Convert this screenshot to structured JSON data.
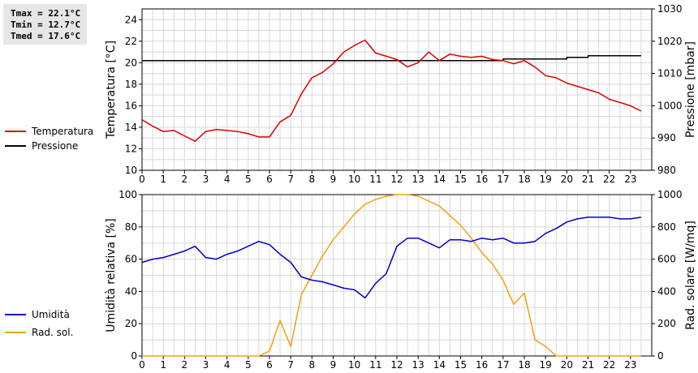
{
  "stats": {
    "tmax": "Tmax = 22.1°C",
    "tmin": "Tmin = 12.7°C",
    "tmed": "Tmed = 17.6°C"
  },
  "legend": {
    "temperatura": "Temperatura",
    "pressione": "Pressione",
    "umidita": "Umidità",
    "rad_sol": "Rad. sol."
  },
  "colors": {
    "temperatura": "#dd0000",
    "pressione": "#000000",
    "umidita": "#0000cc",
    "rad_sol": "#f0a010",
    "grid": "#d8d8d8"
  },
  "chart_data": [
    {
      "type": "line",
      "ylabel": "Temperatura [°C]",
      "y2label": "Pressione [mbar]",
      "xlim": [
        0,
        24
      ],
      "ylim": [
        10,
        25
      ],
      "y2lim": [
        980,
        1030
      ],
      "xticks": [
        "0",
        "1",
        "2",
        "3",
        "4",
        "5",
        "6",
        "7",
        "8",
        "9",
        "10",
        "11",
        "12",
        "13",
        "14",
        "15",
        "16",
        "17",
        "18",
        "19",
        "20",
        "21",
        "22",
        "23"
      ],
      "yticks": [
        "10",
        "12",
        "14",
        "16",
        "18",
        "20",
        "22",
        "24"
      ],
      "y2ticks": [
        "980",
        "990",
        "1000",
        "1010",
        "1020",
        "1030"
      ],
      "grid": true,
      "series": [
        {
          "name": "Temperatura",
          "axis": "left",
          "x": [
            0,
            0.5,
            1,
            1.5,
            2,
            2.5,
            3,
            3.5,
            4,
            4.5,
            5,
            5.5,
            6,
            6.5,
            7,
            7.5,
            8,
            8.5,
            9,
            9.5,
            10,
            10.5,
            11,
            11.5,
            12,
            12.5,
            13,
            13.5,
            14,
            14.5,
            15,
            15.5,
            16,
            16.5,
            17,
            17.5,
            18,
            18.5,
            19,
            19.5,
            20,
            20.5,
            21,
            21.5,
            22,
            22.5,
            23,
            23.5
          ],
          "values": [
            14.7,
            14.1,
            13.6,
            13.7,
            13.2,
            12.7,
            13.6,
            13.8,
            13.7,
            13.6,
            13.4,
            13.1,
            13.1,
            14.5,
            15.1,
            17.1,
            18.6,
            19.1,
            19.9,
            21.0,
            21.6,
            22.1,
            20.9,
            20.6,
            20.3,
            19.6,
            20.0,
            21.0,
            20.2,
            20.8,
            20.6,
            20.5,
            20.6,
            20.3,
            20.2,
            19.9,
            20.2,
            19.6,
            18.8,
            18.6,
            18.1,
            17.8,
            17.5,
            17.2,
            16.6,
            16.3,
            16.0,
            15.5
          ]
        },
        {
          "name": "Pressione",
          "axis": "right",
          "x": [
            0,
            16.5,
            17,
            19.5,
            20,
            20.5,
            21,
            23.5
          ],
          "values": [
            1014,
            1014,
            1014.5,
            1014.5,
            1015,
            1015,
            1015.5,
            1015.5
          ]
        }
      ]
    },
    {
      "type": "line",
      "ylabel": "Umidità relativa [%]",
      "y2label": "Rad. solare [W/mq]",
      "xlim": [
        0,
        24
      ],
      "ylim": [
        0,
        100
      ],
      "y2lim": [
        0,
        1000
      ],
      "xticks": [
        "0",
        "1",
        "2",
        "3",
        "4",
        "5",
        "6",
        "7",
        "8",
        "9",
        "10",
        "11",
        "12",
        "13",
        "14",
        "15",
        "16",
        "17",
        "18",
        "19",
        "20",
        "21",
        "22",
        "23"
      ],
      "yticks": [
        "0",
        "20",
        "40",
        "60",
        "80",
        "100"
      ],
      "y2ticks": [
        "0",
        "200",
        "400",
        "600",
        "800",
        "1000"
      ],
      "grid": true,
      "series": [
        {
          "name": "Umidità",
          "axis": "left",
          "x": [
            0,
            0.5,
            1,
            1.5,
            2,
            2.5,
            3,
            3.5,
            4,
            4.5,
            5,
            5.5,
            6,
            6.5,
            7,
            7.5,
            8,
            8.5,
            9,
            9.5,
            10,
            10.5,
            11,
            11.5,
            12,
            12.5,
            13,
            13.5,
            14,
            14.5,
            15,
            15.5,
            16,
            16.5,
            17,
            17.5,
            18,
            18.5,
            19,
            19.5,
            20,
            20.5,
            21,
            21.5,
            22,
            22.5,
            23,
            23.5
          ],
          "values": [
            58,
            60,
            61,
            63,
            65,
            68,
            61,
            60,
            63,
            65,
            68,
            71,
            69,
            63,
            58,
            49,
            47,
            46,
            44,
            42,
            41,
            36,
            45,
            51,
            68,
            73,
            73,
            70,
            67,
            72,
            72,
            71,
            73,
            72,
            73,
            70,
            70,
            71,
            76,
            79,
            83,
            85,
            86,
            86,
            86,
            85,
            85,
            86
          ]
        },
        {
          "name": "Rad. sol.",
          "axis": "right",
          "x": [
            0,
            1,
            2,
            3,
            4,
            5,
            5.5,
            6,
            6.5,
            7,
            7.5,
            8,
            8.5,
            9,
            9.5,
            10,
            10.5,
            11,
            11.5,
            12,
            12.5,
            13,
            13.5,
            14,
            14.5,
            15,
            15.5,
            16,
            16.5,
            17,
            17.5,
            18,
            18.5,
            19,
            19.5,
            20,
            21,
            22,
            23,
            23.5
          ],
          "values": [
            0,
            0,
            0,
            0,
            0,
            0,
            0,
            30,
            220,
            60,
            380,
            500,
            620,
            720,
            800,
            880,
            940,
            970,
            990,
            1000,
            1000,
            990,
            960,
            930,
            870,
            810,
            730,
            640,
            570,
            470,
            320,
            390,
            100,
            60,
            0,
            0,
            0,
            0,
            0,
            0
          ]
        }
      ]
    }
  ]
}
